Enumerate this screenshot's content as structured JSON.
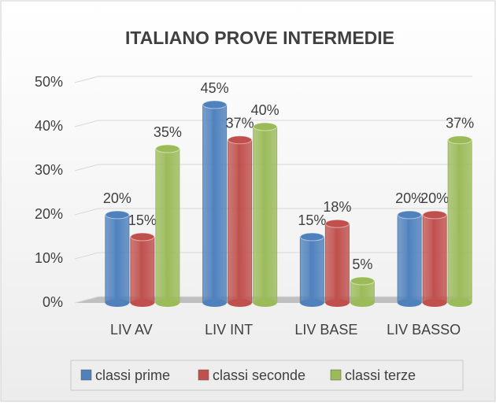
{
  "chart_data": {
    "type": "bar3d",
    "title": "ITALIANO PROVE INTERMEDIE",
    "categories": [
      "LIV AV",
      "LIV INT",
      "LIV BASE",
      "LIV BASSO"
    ],
    "series": [
      {
        "name": "classi prime",
        "color": "#4f81bd",
        "values": [
          20,
          45,
          15,
          20
        ],
        "value_labels": [
          "20%",
          "45%",
          "15%",
          "20%"
        ]
      },
      {
        "name": "classi seconde",
        "color": "#c0504d",
        "values": [
          15,
          37,
          18,
          20
        ],
        "value_labels": [
          "15%",
          "37%",
          "18%",
          "20%"
        ]
      },
      {
        "name": "classi terze",
        "color": "#9bbb59",
        "values": [
          35,
          40,
          5,
          37
        ],
        "value_labels": [
          "35%",
          "40%",
          "5%",
          "37%"
        ]
      }
    ],
    "ylim": [
      0,
      50
    ],
    "yticks": [
      {
        "value": 0,
        "label": "0%"
      },
      {
        "value": 10,
        "label": "10%"
      },
      {
        "value": 20,
        "label": "20%"
      },
      {
        "value": 30,
        "label": "30%"
      },
      {
        "value": 40,
        "label": "40%"
      },
      {
        "value": 50,
        "label": "50%"
      }
    ],
    "grid": true,
    "legend": "bottom"
  }
}
